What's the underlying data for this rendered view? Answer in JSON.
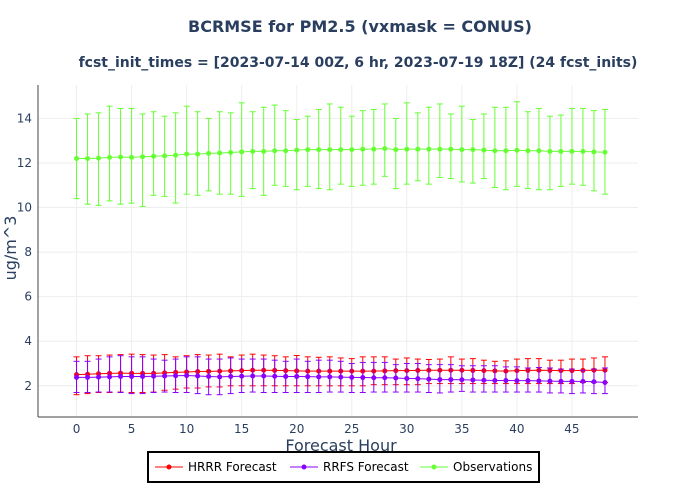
{
  "chart_data": {
    "type": "line",
    "title": "BCRMSE for PM2.5 (vxmask = CONUS)",
    "subtitle": "fcst_init_times = [2023-07-14 00Z, 6 hr, 2023-07-19 18Z] (24 fcst_inits)",
    "xlabel": "Forecast Hour",
    "ylabel": "ug/m^3",
    "xlim": [
      -3.5,
      51
    ],
    "ylim": [
      0.6,
      15.5
    ],
    "xticks": [
      0,
      5,
      10,
      15,
      20,
      25,
      30,
      35,
      40,
      45
    ],
    "yticks": [
      2,
      4,
      6,
      8,
      10,
      12,
      14
    ],
    "grid": true,
    "legend_position": "bottom",
    "x": [
      0,
      1,
      2,
      3,
      4,
      5,
      6,
      7,
      8,
      9,
      10,
      11,
      12,
      13,
      14,
      15,
      16,
      17,
      18,
      19,
      20,
      21,
      22,
      23,
      24,
      25,
      26,
      27,
      28,
      29,
      30,
      31,
      32,
      33,
      34,
      35,
      36,
      37,
      38,
      39,
      40,
      41,
      42,
      43,
      44,
      45,
      46,
      47,
      48
    ],
    "series": [
      {
        "name": "HRRR Forecast",
        "color": "#ff0000",
        "values": [
          2.5,
          2.52,
          2.54,
          2.56,
          2.57,
          2.56,
          2.56,
          2.56,
          2.58,
          2.6,
          2.62,
          2.64,
          2.65,
          2.66,
          2.67,
          2.68,
          2.7,
          2.7,
          2.69,
          2.68,
          2.67,
          2.66,
          2.66,
          2.66,
          2.66,
          2.66,
          2.66,
          2.66,
          2.67,
          2.68,
          2.68,
          2.69,
          2.7,
          2.7,
          2.7,
          2.7,
          2.69,
          2.68,
          2.67,
          2.66,
          2.68,
          2.69,
          2.7,
          2.69,
          2.68,
          2.68,
          2.69,
          2.7,
          2.7
        ],
        "error_upper": [
          3.3,
          3.35,
          3.35,
          3.38,
          3.4,
          3.42,
          3.4,
          3.38,
          3.4,
          3.3,
          3.35,
          3.4,
          3.38,
          3.42,
          3.3,
          3.38,
          3.42,
          3.38,
          3.35,
          3.3,
          3.36,
          3.3,
          3.28,
          3.3,
          3.25,
          3.22,
          3.3,
          3.3,
          3.3,
          3.2,
          3.25,
          3.2,
          3.18,
          3.2,
          3.3,
          3.2,
          3.22,
          3.15,
          3.1,
          3.12,
          3.2,
          3.22,
          3.22,
          3.15,
          3.15,
          3.2,
          3.2,
          3.25,
          3.3
        ],
        "error_lower": [
          1.6,
          1.65,
          1.7,
          1.7,
          1.72,
          1.7,
          1.7,
          1.72,
          1.8,
          1.85,
          1.9,
          1.9,
          1.95,
          1.95,
          2.0,
          2.0,
          2.0,
          2.0,
          2.0,
          2.0,
          2.0,
          2.0,
          2.0,
          2.0,
          2.0,
          2.0,
          2.0,
          2.05,
          2.05,
          2.05,
          2.05,
          2.05,
          2.1,
          2.1,
          2.1,
          2.1,
          2.1,
          2.1,
          2.1,
          2.1,
          2.1,
          2.1,
          2.1,
          2.1,
          2.1,
          2.1,
          2.15,
          2.15,
          2.15
        ]
      },
      {
        "name": "RRFS Forecast",
        "color": "#8a00ff",
        "values": [
          2.38,
          2.38,
          2.39,
          2.4,
          2.42,
          2.42,
          2.42,
          2.43,
          2.44,
          2.45,
          2.46,
          2.44,
          2.42,
          2.4,
          2.42,
          2.43,
          2.44,
          2.44,
          2.43,
          2.42,
          2.42,
          2.41,
          2.4,
          2.4,
          2.39,
          2.38,
          2.37,
          2.36,
          2.36,
          2.35,
          2.33,
          2.32,
          2.3,
          2.28,
          2.28,
          2.27,
          2.26,
          2.25,
          2.24,
          2.24,
          2.23,
          2.23,
          2.22,
          2.21,
          2.2,
          2.2,
          2.2,
          2.18,
          2.15
        ],
        "error_upper": [
          3.1,
          3.1,
          3.2,
          3.3,
          3.35,
          3.3,
          3.3,
          3.2,
          3.15,
          3.2,
          3.3,
          3.3,
          3.2,
          3.2,
          3.25,
          3.2,
          3.2,
          3.2,
          3.15,
          3.1,
          3.2,
          3.1,
          3.15,
          3.15,
          3.1,
          3.0,
          3.05,
          3.05,
          3.05,
          2.95,
          3.0,
          3.0,
          2.95,
          2.95,
          2.95,
          2.9,
          2.9,
          2.9,
          2.9,
          2.85,
          2.85,
          2.8,
          2.82,
          2.8,
          2.75,
          2.75,
          2.7,
          2.75,
          2.8
        ],
        "error_lower": [
          1.7,
          1.7,
          1.72,
          1.72,
          1.7,
          1.65,
          1.65,
          1.7,
          1.72,
          1.7,
          1.7,
          1.65,
          1.6,
          1.6,
          1.65,
          1.7,
          1.72,
          1.7,
          1.7,
          1.7,
          1.7,
          1.7,
          1.7,
          1.72,
          1.72,
          1.7,
          1.7,
          1.72,
          1.72,
          1.72,
          1.72,
          1.72,
          1.7,
          1.68,
          1.72,
          1.75,
          1.72,
          1.72,
          1.72,
          1.72,
          1.72,
          1.72,
          1.72,
          1.68,
          1.68,
          1.65,
          1.68,
          1.65,
          1.65
        ]
      },
      {
        "name": "Observations",
        "color": "#66ff33",
        "values": [
          12.2,
          12.2,
          12.22,
          12.25,
          12.27,
          12.25,
          12.28,
          12.3,
          12.32,
          12.35,
          12.4,
          12.4,
          12.43,
          12.45,
          12.47,
          12.5,
          12.52,
          12.52,
          12.55,
          12.55,
          12.58,
          12.6,
          12.6,
          12.6,
          12.6,
          12.6,
          12.62,
          12.62,
          12.65,
          12.6,
          12.62,
          12.62,
          12.62,
          12.62,
          12.62,
          12.6,
          12.6,
          12.58,
          12.55,
          12.55,
          12.57,
          12.55,
          12.55,
          12.52,
          12.52,
          12.52,
          12.52,
          12.5,
          12.48
        ],
        "error_upper": [
          14.0,
          14.2,
          14.25,
          14.55,
          14.45,
          14.45,
          14.2,
          14.3,
          14.1,
          14.25,
          14.55,
          14.3,
          14.0,
          14.3,
          14.25,
          14.7,
          14.3,
          14.5,
          14.6,
          14.35,
          13.95,
          14.1,
          14.4,
          14.65,
          14.5,
          14.1,
          14.35,
          14.4,
          14.65,
          14.0,
          14.7,
          14.25,
          14.5,
          14.65,
          14.2,
          14.55,
          13.95,
          14.2,
          14.5,
          14.5,
          14.75,
          14.3,
          14.45,
          14.1,
          14.15,
          14.45,
          14.45,
          14.35,
          14.4
        ],
        "error_lower": [
          10.4,
          10.15,
          10.1,
          10.3,
          10.15,
          10.2,
          10.05,
          10.55,
          10.5,
          10.2,
          10.6,
          10.55,
          10.75,
          10.6,
          10.6,
          10.5,
          10.85,
          10.55,
          11.0,
          10.95,
          10.8,
          10.95,
          10.85,
          10.8,
          11.05,
          10.95,
          11.0,
          11.05,
          11.4,
          10.85,
          11.05,
          11.2,
          11.05,
          11.35,
          11.3,
          11.15,
          11.1,
          11.3,
          10.9,
          10.8,
          10.95,
          10.85,
          10.8,
          10.8,
          10.95,
          11.05,
          11.0,
          10.75,
          10.6
        ]
      }
    ]
  }
}
